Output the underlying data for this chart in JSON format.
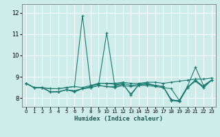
{
  "xlabel": "Humidex (Indice chaleur)",
  "xlim": [
    -0.5,
    23.5
  ],
  "ylim": [
    7.6,
    12.4
  ],
  "yticks": [
    8,
    9,
    10,
    11,
    12
  ],
  "xticks": [
    0,
    1,
    2,
    3,
    4,
    5,
    6,
    7,
    8,
    9,
    10,
    11,
    12,
    13,
    14,
    15,
    16,
    17,
    18,
    19,
    20,
    21,
    22,
    23
  ],
  "background_color": "#ceecea",
  "grid_color": "#ffffff",
  "line_color": "#1a7a72",
  "lines": [
    [
      8.7,
      8.5,
      8.5,
      8.45,
      8.45,
      8.5,
      8.55,
      11.85,
      8.6,
      8.65,
      11.05,
      8.6,
      8.7,
      8.15,
      8.65,
      8.65,
      8.6,
      8.55,
      7.9,
      7.9,
      8.55,
      9.45,
      8.6,
      8.85
    ],
    [
      8.7,
      8.5,
      8.5,
      8.3,
      8.3,
      8.4,
      8.3,
      8.45,
      8.5,
      8.6,
      8.55,
      8.5,
      8.6,
      8.55,
      8.6,
      8.6,
      8.55,
      8.5,
      8.45,
      7.9,
      8.5,
      8.8,
      8.5,
      8.85
    ],
    [
      8.7,
      8.5,
      8.5,
      8.3,
      8.3,
      8.4,
      8.35,
      8.45,
      8.5,
      8.6,
      8.55,
      8.55,
      8.65,
      8.2,
      8.65,
      8.7,
      8.6,
      8.55,
      7.9,
      7.85,
      8.5,
      8.85,
      8.5,
      8.85
    ],
    [
      8.7,
      8.5,
      8.5,
      8.3,
      8.3,
      8.4,
      8.35,
      8.45,
      8.55,
      8.7,
      8.7,
      8.65,
      8.7,
      8.6,
      8.65,
      8.7,
      8.6,
      8.55,
      7.95,
      7.85,
      8.5,
      8.85,
      8.55,
      8.85
    ],
    [
      8.7,
      8.5,
      8.5,
      8.45,
      8.45,
      8.5,
      8.55,
      8.5,
      8.6,
      8.7,
      8.7,
      8.7,
      8.75,
      8.7,
      8.7,
      8.75,
      8.75,
      8.7,
      8.75,
      8.8,
      8.85,
      8.9,
      8.9,
      8.95
    ]
  ]
}
